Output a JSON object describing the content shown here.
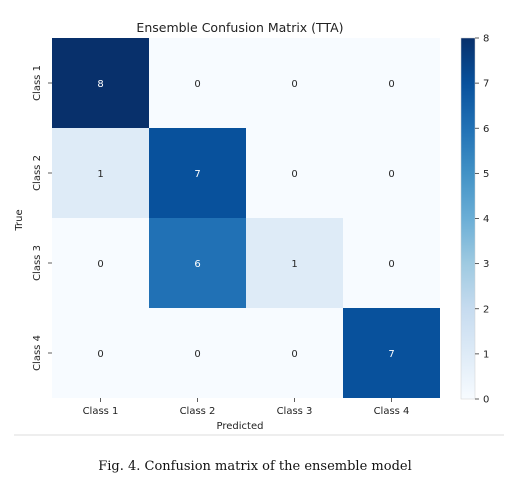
{
  "chart_data": {
    "type": "heatmap",
    "title": "Ensemble Confusion Matrix (TTA)",
    "xlabel": "Predicted",
    "ylabel": "True",
    "x_categories": [
      "Class 1",
      "Class 2",
      "Class 3",
      "Class 4"
    ],
    "y_categories": [
      "Class 1",
      "Class 2",
      "Class 3",
      "Class 4"
    ],
    "values": [
      [
        8,
        0,
        0,
        0
      ],
      [
        1,
        7,
        0,
        0
      ],
      [
        0,
        6,
        1,
        0
      ],
      [
        0,
        0,
        0,
        7
      ]
    ],
    "colorbar": {
      "min": 0,
      "max": 8,
      "ticks": [
        "0",
        "1",
        "2",
        "3",
        "4",
        "5",
        "6",
        "7",
        "8"
      ],
      "colormap": "Blues"
    },
    "colors": {
      "low": "#f7fbff",
      "high": "#08306b",
      "label_dark_bg": "#ffffff",
      "label_light_bg": "#262626"
    }
  },
  "caption": "Fig. 4.  Confusion matrix of the ensemble model"
}
